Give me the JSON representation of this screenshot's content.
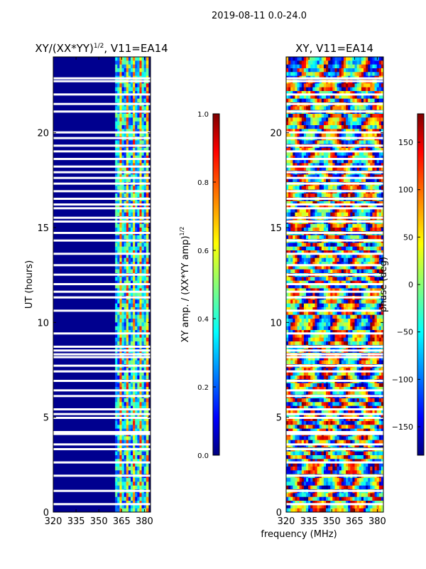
{
  "figure": {
    "suptitle": "2019-08-11 0.0-24.0",
    "xlabel": "frequency (MHz)"
  },
  "chart_data": [
    {
      "type": "heatmap",
      "title": "XY/(XX*YY)",
      "title_exponent": "1/2",
      "title_suffix": ", V11=EA14",
      "xlabel": "",
      "ylabel": "UT (hours)",
      "xlim": [
        320,
        384
      ],
      "ylim": [
        0,
        24
      ],
      "xticks": [
        320,
        335,
        350,
        365,
        380
      ],
      "yticks": [
        0,
        5,
        10,
        15,
        20
      ],
      "colorbar": {
        "label": "XY amp. / (XX*YY amp)",
        "label_exponent": "1/2",
        "range": [
          0.0,
          1.0
        ],
        "ticks": [
          "0.0",
          "0.2",
          "0.4",
          "0.6",
          "0.8",
          "1.0"
        ],
        "colormap": "jet"
      },
      "colormap_stops": [
        "#00007f",
        "#0000ff",
        "#00ffff",
        "#ffff00",
        "#ff0000",
        "#7f0000"
      ],
      "bright_band_mhz": [
        361,
        382
      ],
      "flagged_utc_hours": [
        0.4,
        1.1,
        1.9,
        2.6,
        3.3,
        3.55,
        4.1,
        4.2,
        4.95,
        5.15,
        5.4,
        6.1,
        6.4,
        6.9,
        7.4,
        7.7,
        8.15,
        8.3,
        8.5,
        8.7,
        9.4,
        10.6,
        11.3,
        11.6,
        12.0,
        12.5,
        13.0,
        13.6,
        14.3,
        14.7,
        15.3,
        15.5,
        16.0,
        16.2,
        16.5,
        16.9,
        17.3,
        17.6,
        17.9,
        18.2,
        18.6,
        19.0,
        19.3,
        19.7,
        20.0,
        21.1,
        21.5,
        22.0,
        22.7,
        22.85
      ]
    },
    {
      "type": "heatmap",
      "title": "XY, V11=EA14",
      "xlabel": "",
      "ylabel": "",
      "xlim": [
        320,
        384
      ],
      "ylim": [
        0,
        24
      ],
      "xticks": [
        320,
        335,
        350,
        365,
        380
      ],
      "yticks": [
        0,
        5,
        10,
        15,
        20
      ],
      "colorbar": {
        "label": "phase (deg)",
        "range": [
          -180,
          180
        ],
        "ticks": [
          "−150",
          "−100",
          "−50",
          "0",
          "50",
          "100",
          "150"
        ],
        "tick_values": [
          -150,
          -100,
          -50,
          0,
          50,
          100,
          150
        ],
        "colormap": "jet"
      },
      "colormap_stops": [
        "#00007f",
        "#0000ff",
        "#00ffff",
        "#ffff00",
        "#ff0000",
        "#7f0000"
      ],
      "flagged_utc_hours": [
        0.4,
        1.1,
        1.9,
        2.6,
        3.3,
        3.55,
        4.1,
        4.2,
        4.95,
        5.15,
        5.4,
        6.1,
        6.4,
        6.9,
        7.4,
        7.7,
        8.15,
        8.3,
        8.5,
        8.7,
        9.4,
        10.6,
        11.3,
        11.6,
        12.0,
        12.5,
        13.0,
        13.6,
        14.3,
        14.7,
        15.3,
        15.5,
        16.0,
        16.2,
        16.5,
        16.9,
        17.3,
        17.6,
        17.9,
        18.2,
        18.6,
        19.0,
        19.3,
        19.7,
        20.0,
        21.1,
        21.5,
        22.0,
        22.7,
        22.85
      ]
    }
  ]
}
